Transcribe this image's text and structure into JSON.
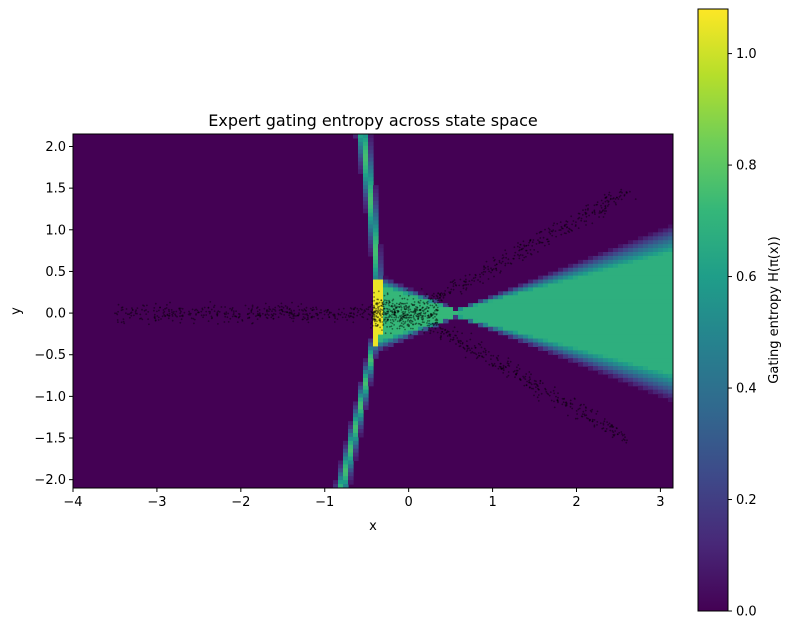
{
  "chart_data": {
    "type": "heatmap",
    "title": "Expert gating entropy across state space",
    "xlabel": "x",
    "ylabel": "y",
    "xlim": [
      -4.0,
      3.15
    ],
    "ylim": [
      -2.1,
      2.15
    ],
    "x_ticks": [
      -4,
      -3,
      -2,
      -1,
      0,
      1,
      2,
      3
    ],
    "x_tick_labels": [
      "−4",
      "−3",
      "−2",
      "−1",
      "0",
      "1",
      "2",
      "3"
    ],
    "y_ticks": [
      -2.0,
      -1.5,
      -1.0,
      -0.5,
      0.0,
      0.5,
      1.0,
      1.5,
      2.0
    ],
    "y_tick_labels": [
      "−2.0",
      "−1.5",
      "−1.0",
      "−0.5",
      "0.0",
      "0.5",
      "1.0",
      "1.5",
      "2.0"
    ],
    "colorbar": {
      "label": "Gating entropy  H(π(x))",
      "range": [
        0.0,
        1.08
      ],
      "ticks": [
        0.0,
        0.2,
        0.4,
        0.6,
        0.8,
        1.0
      ],
      "tick_labels": [
        "0.0",
        "0.2",
        "0.4",
        "0.6",
        "0.8",
        "1.0"
      ],
      "colormap": "viridis"
    },
    "regions": [
      {
        "description": "background",
        "entropy": 0.0
      },
      {
        "description": "wedge opening to the right from x≈0.7 along y=0",
        "entropy": 0.68
      },
      {
        "description": "fan just right of x≈-0.35 near y=0",
        "entropy": 0.72
      },
      {
        "description": "thin curved band from (-0.55, 2.15) through (-0.35, 0) to (-0.8, -2.1)",
        "entropy": 0.75
      },
      {
        "description": "peak strip near x≈-0.37, y in [-0.4, 0.4]",
        "entropy": 1.05
      }
    ],
    "scatter_clusters": [
      {
        "shape": "horizontal band",
        "x_range": [
          -3.5,
          -0.4
        ],
        "y_center": 0.0,
        "y_spread": 0.05
      },
      {
        "shape": "dense blob",
        "x_range": [
          -0.45,
          0.35
        ],
        "y_center": 0.0,
        "y_spread": 0.1
      },
      {
        "shape": "rising arm",
        "from": [
          0.3,
          0.15
        ],
        "to": [
          2.6,
          1.45
        ]
      },
      {
        "shape": "falling arm",
        "from": [
          0.3,
          -0.15
        ],
        "to": [
          2.6,
          -1.5
        ]
      }
    ]
  },
  "colors": {
    "viridis_stops": [
      "#440154",
      "#482878",
      "#3e4989",
      "#31688e",
      "#26828e",
      "#1f9e89",
      "#35b779",
      "#6ece58",
      "#b5de2b",
      "#fde725"
    ],
    "point_color": "#000000"
  }
}
